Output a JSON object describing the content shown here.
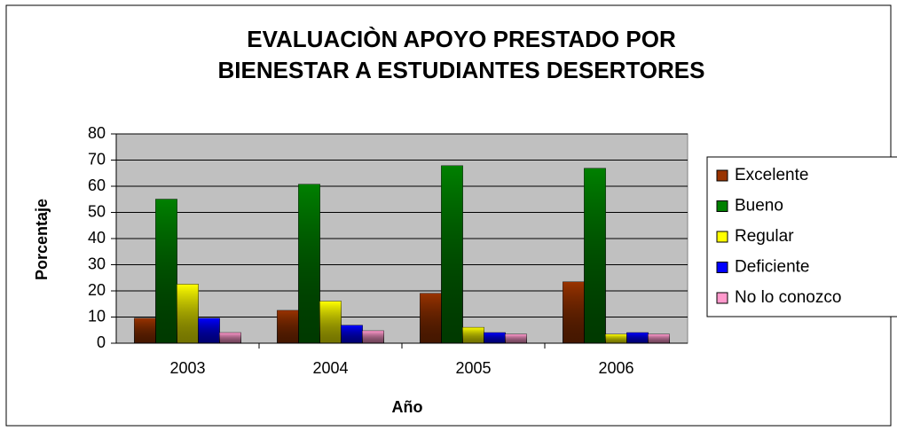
{
  "chart_data": {
    "type": "bar",
    "title": [
      "EVALUACIÒN APOYO PRESTADO POR",
      "BIENESTAR A ESTUDIANTES DESERTORES"
    ],
    "x_label": "Año",
    "y_label": "Porcentaje",
    "categories": [
      "2003",
      "2004",
      "2005",
      "2006"
    ],
    "series": [
      {
        "name": "Excelente",
        "color": "#993300",
        "values": [
          9.5,
          12.5,
          19,
          23.4
        ]
      },
      {
        "name": "Bueno",
        "color": "#008000",
        "values": [
          55,
          60.7,
          67.8,
          66.8
        ]
      },
      {
        "name": "Regular",
        "color": "#ffff00",
        "values": [
          22.5,
          16,
          6,
          3.4
        ]
      },
      {
        "name": "Deficiente",
        "color": "#0000ff",
        "values": [
          9.5,
          6.8,
          4,
          4
        ]
      },
      {
        "name": "No lo conozco",
        "color": "#ff99cc",
        "values": [
          4,
          4.7,
          3.4,
          3.4
        ]
      }
    ],
    "ylim": [
      0,
      80
    ],
    "yticks": [
      0,
      10,
      20,
      30,
      40,
      50,
      60,
      70,
      80
    ],
    "grid": true,
    "legend": "right"
  }
}
